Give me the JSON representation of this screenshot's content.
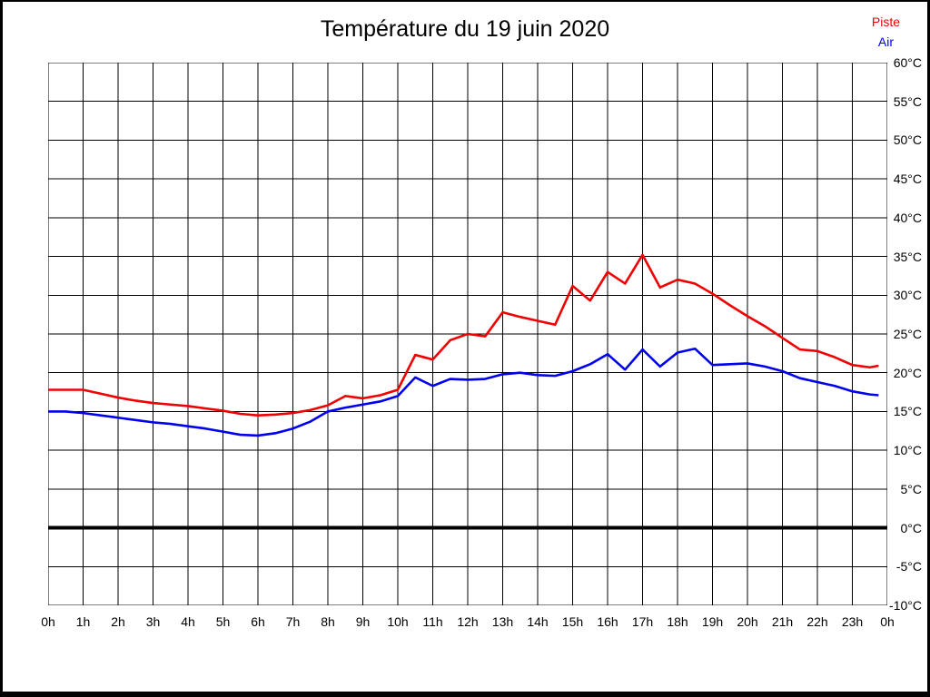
{
  "title": "Température du 19 juin 2020",
  "legend": [
    {
      "label": "Piste",
      "color": "#f00000"
    },
    {
      "label": "Air",
      "color": "#0000f0"
    }
  ],
  "colors": {
    "grid": "#000000",
    "zero_line": "#000000",
    "background": "#ffffff",
    "border": "#000000"
  },
  "chart_data": {
    "type": "line",
    "title": "Température du 19 juin 2020",
    "xlabel": "",
    "ylabel": "",
    "xlim": [
      0,
      24
    ],
    "ylim": [
      -10,
      60
    ],
    "grid": true,
    "legend_position": "top-right",
    "x_tick_labels": [
      "0h",
      "1h",
      "2h",
      "3h",
      "4h",
      "5h",
      "6h",
      "7h",
      "8h",
      "9h",
      "10h",
      "11h",
      "12h",
      "13h",
      "14h",
      "15h",
      "16h",
      "17h",
      "18h",
      "19h",
      "20h",
      "21h",
      "22h",
      "23h",
      "0h"
    ],
    "y_tick_labels": [
      "60°C",
      "55°C",
      "50°C",
      "45°C",
      "40°C",
      "35°C",
      "30°C",
      "25°C",
      "20°C",
      "15°C",
      "10°C",
      "5°C",
      "0°C",
      "-5°C",
      "-10°C"
    ],
    "y_tick_values": [
      60,
      55,
      50,
      45,
      40,
      35,
      30,
      25,
      20,
      15,
      10,
      5,
      0,
      -5,
      -10
    ],
    "zero_line_value": 0,
    "x": [
      0,
      0.5,
      1,
      1.5,
      2,
      2.5,
      3,
      3.5,
      4,
      4.5,
      5,
      5.5,
      6,
      6.5,
      7,
      7.5,
      8,
      8.5,
      9,
      9.5,
      10,
      10.5,
      11,
      11.5,
      12,
      12.5,
      13,
      13.5,
      14,
      14.5,
      15,
      15.5,
      16,
      16.5,
      17,
      17.5,
      18,
      18.5,
      19,
      19.5,
      20,
      20.5,
      21,
      21.5,
      22,
      22.5,
      23,
      23.5,
      23.75
    ],
    "series": [
      {
        "name": "Piste",
        "color": "#f00000",
        "values": [
          17.8,
          17.8,
          17.8,
          17.3,
          16.8,
          16.4,
          16.1,
          15.9,
          15.7,
          15.4,
          15.1,
          14.7,
          14.5,
          14.6,
          14.8,
          15.2,
          15.8,
          17.0,
          16.7,
          17.1,
          17.8,
          22.3,
          21.7,
          24.2,
          25.0,
          24.7,
          27.8,
          27.2,
          26.7,
          26.2,
          31.2,
          29.3,
          33.0,
          31.5,
          35.2,
          31.0,
          32.0,
          31.5,
          30.2,
          28.7,
          27.3,
          26.0,
          24.5,
          23.0,
          22.8,
          22.0,
          21.0,
          20.7,
          20.9
        ]
      },
      {
        "name": "Air",
        "color": "#0000f0",
        "values": [
          15.0,
          15.0,
          14.8,
          14.5,
          14.2,
          13.9,
          13.6,
          13.4,
          13.1,
          12.8,
          12.4,
          12.0,
          11.9,
          12.2,
          12.8,
          13.7,
          15.0,
          15.5,
          15.9,
          16.3,
          17.0,
          19.4,
          18.3,
          19.2,
          19.1,
          19.2,
          19.8,
          20.0,
          19.7,
          19.6,
          20.2,
          21.1,
          22.4,
          20.4,
          23.0,
          20.8,
          22.6,
          23.1,
          21.0,
          21.1,
          21.2,
          20.8,
          20.2,
          19.3,
          18.8,
          18.3,
          17.6,
          17.2,
          17.1
        ]
      }
    ]
  }
}
